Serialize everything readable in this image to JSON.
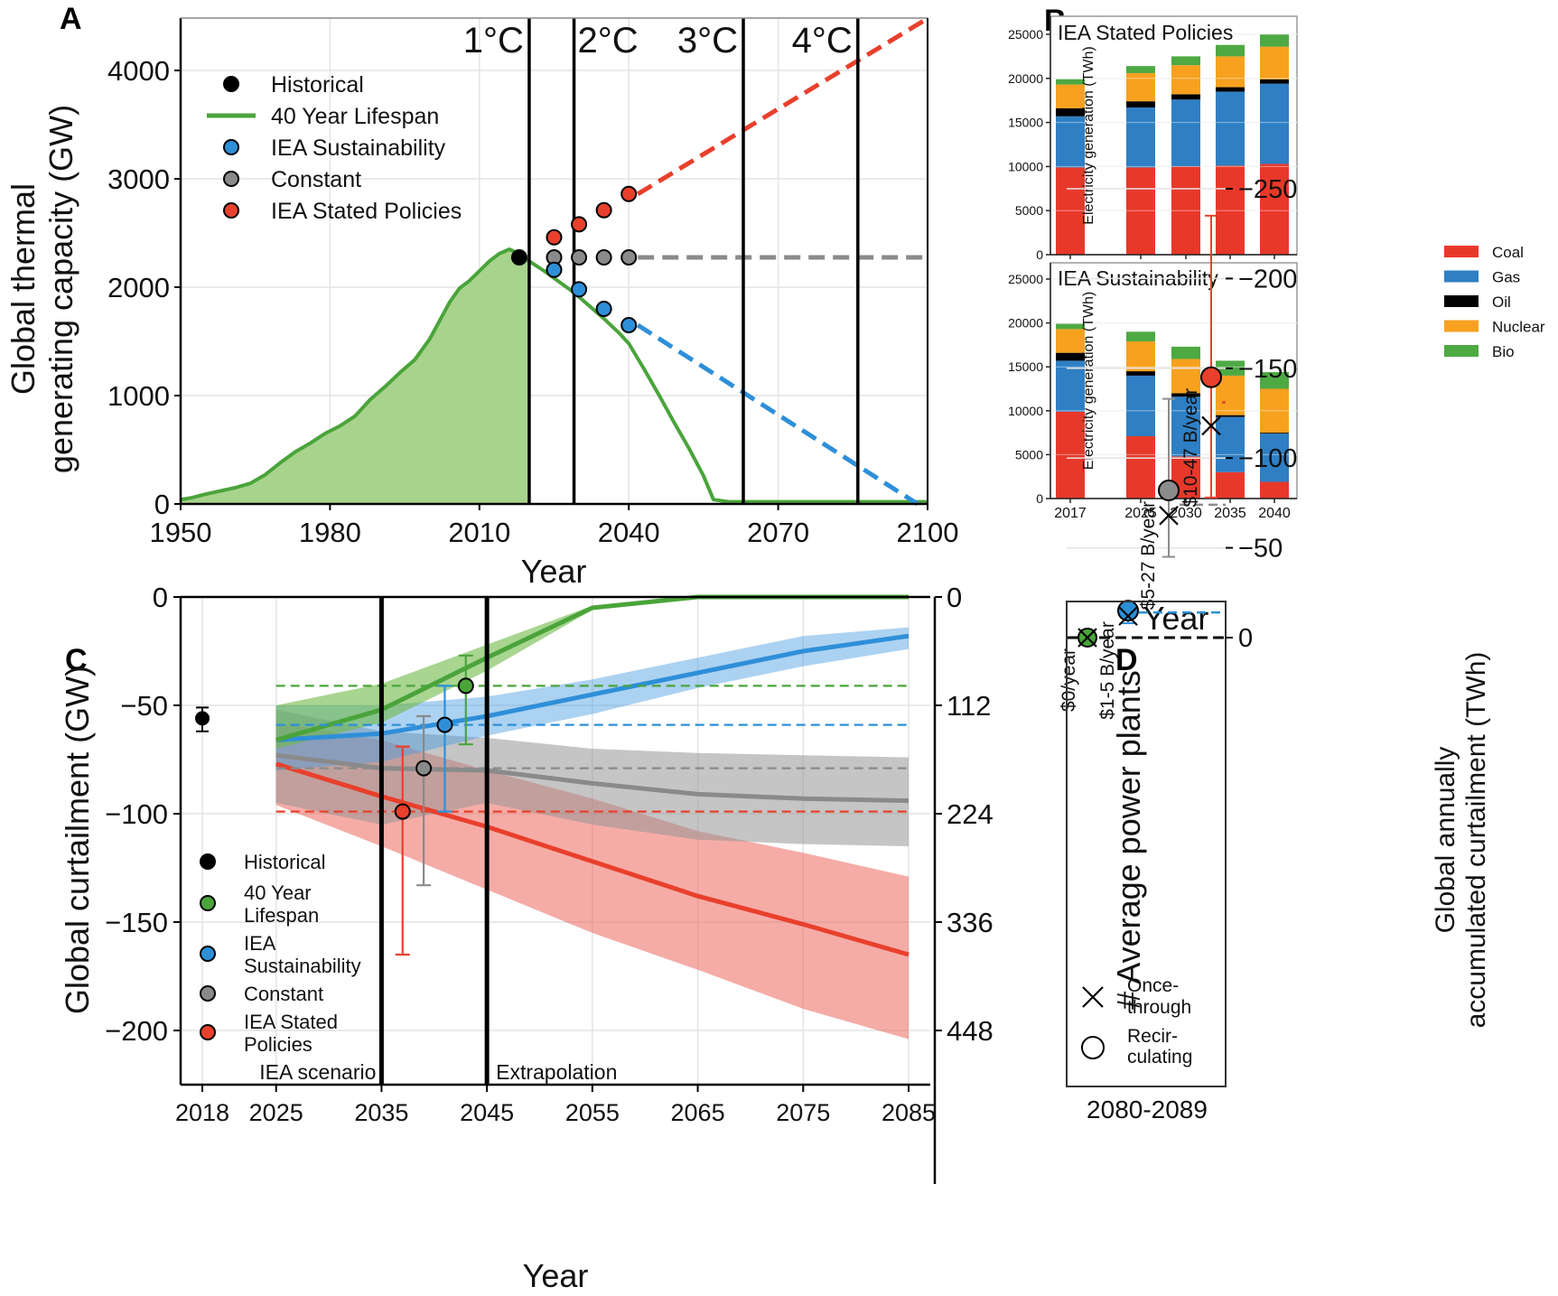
{
  "figure": {
    "panels": [
      "A",
      "B",
      "C",
      "D"
    ]
  },
  "chart_data": [
    {
      "panel": "A",
      "type": "line",
      "xlabel": "Year",
      "ylabel": "Global thermal generating capacity (GW)",
      "xlim": [
        1950,
        2100
      ],
      "ylim": [
        0,
        4400
      ],
      "xticks": [
        1950,
        1980,
        2010,
        2040,
        2070,
        2100
      ],
      "yticks": [
        0,
        1000,
        2000,
        3000,
        4000
      ],
      "grid": true,
      "legend_position": "top-left",
      "legend": [
        "Historical",
        "40 Year Lifespan",
        "IEA Sustainability",
        "Constant",
        "IEA Stated Policies"
      ],
      "warming_lines": [
        {
          "label": "1°C",
          "year": 2020
        },
        {
          "label": "2°C",
          "year": 2029
        },
        {
          "label": "3°C",
          "year": 2063
        },
        {
          "label": "4°C",
          "year": 2086
        }
      ],
      "lifespan_40yr": {
        "x": [
          1950,
          1952,
          1955,
          1958,
          1961,
          1964,
          1967,
          1970,
          1973,
          1976,
          1979,
          1982,
          1985,
          1988,
          1991,
          1994,
          1997,
          2000,
          2002,
          2004,
          2006,
          2008,
          2010,
          2012,
          2014,
          2016,
          2017,
          2018,
          2020,
          2023,
          2026,
          2029,
          2032,
          2035,
          2038,
          2040,
          2043,
          2046,
          2049,
          2052,
          2055,
          2057,
          2060,
          2070,
          2080,
          2090,
          2100
        ],
        "y": [
          40,
          55,
          90,
          120,
          150,
          190,
          270,
          380,
          480,
          560,
          650,
          720,
          810,
          960,
          1080,
          1210,
          1330,
          1520,
          1690,
          1860,
          1990,
          2060,
          2150,
          2240,
          2310,
          2350,
          2330,
          2290,
          2240,
          2150,
          2050,
          1950,
          1830,
          1710,
          1580,
          1480,
          1250,
          1010,
          760,
          520,
          260,
          40,
          20,
          20,
          20,
          20,
          20
        ]
      },
      "historical": {
        "x": [
          2018
        ],
        "y": [
          2275
        ]
      },
      "iea_sustainability": {
        "x": [
          2025,
          2030,
          2035,
          2040
        ],
        "y": [
          2160,
          1980,
          1800,
          1650
        ],
        "extrapolation": {
          "x": [
            2040,
            2098
          ],
          "y": [
            1650,
            0
          ]
        }
      },
      "constant": {
        "x": [
          2025,
          2030,
          2035,
          2040
        ],
        "y": [
          2275,
          2275,
          2275,
          2275
        ],
        "extrapolation": {
          "x": [
            2040,
            2100
          ],
          "y": [
            2275,
            2275
          ]
        }
      },
      "iea_stated_policies": {
        "x": [
          2025,
          2030,
          2035,
          2040
        ],
        "y": [
          2460,
          2580,
          2710,
          2860
        ],
        "extrapolation": {
          "x": [
            2040,
            2100
          ],
          "y": [
            2860,
            4480
          ]
        }
      }
    },
    {
      "panel": "B",
      "type": "bar",
      "stacked": true,
      "xlabel": "Year",
      "ylabel": "Electricity generation (TWh)",
      "ylim": [
        0,
        27000
      ],
      "yticks": [
        0,
        5000,
        10000,
        15000,
        20000,
        25000
      ],
      "categories": [
        "2017",
        "2025",
        "2030",
        "2035",
        "2040"
      ],
      "legend_position": "right",
      "legend": [
        "Coal",
        "Gas",
        "Oil",
        "Nuclear",
        "Bio"
      ],
      "subplots": [
        {
          "title": "IEA Stated Policies",
          "series": [
            {
              "name": "Coal",
              "values": [
                9900,
                9900,
                10000,
                10100,
                10300
              ]
            },
            {
              "name": "Gas",
              "values": [
                5800,
                6800,
                7600,
                8400,
                9100
              ]
            },
            {
              "name": "Oil",
              "values": [
                900,
                700,
                600,
                500,
                500
              ]
            },
            {
              "name": "Nuclear",
              "values": [
                2700,
                3200,
                3300,
                3500,
                3700
              ]
            },
            {
              "name": "Bio",
              "values": [
                600,
                800,
                1000,
                1300,
                1400
              ]
            }
          ]
        },
        {
          "title": "IEA Sustainability",
          "series": [
            {
              "name": "Coal",
              "values": [
                9900,
                7100,
                4800,
                3000,
                1900
              ]
            },
            {
              "name": "Gas",
              "values": [
                5800,
                6900,
                6800,
                6300,
                5500
              ]
            },
            {
              "name": "Oil",
              "values": [
                900,
                500,
                400,
                200,
                100
              ]
            },
            {
              "name": "Nuclear",
              "values": [
                2700,
                3400,
                3900,
                4500,
                5000
              ]
            },
            {
              "name": "Bio",
              "values": [
                600,
                1100,
                1400,
                1700,
                1900
              ]
            }
          ]
        }
      ]
    },
    {
      "panel": "C",
      "type": "line",
      "xlabel": "Year",
      "ylabel": "Global curtailment (GW)",
      "ylabel_right": "# Average power plants",
      "xlim": [
        2015,
        2088
      ],
      "ylim": [
        -225,
        0
      ],
      "xticks": [
        2018,
        2025,
        2035,
        2045,
        2055,
        2065,
        2075,
        2085
      ],
      "yticks": [
        0,
        -50,
        -100,
        -150,
        -200
      ],
      "yticks_right": [
        0,
        112,
        224,
        336,
        448
      ],
      "grid": true,
      "legend_position": "bottom-left",
      "legend": [
        "Historical",
        "40 Year Lifespan",
        "IEA Sustainability",
        "Constant",
        "IEA Stated Policies"
      ],
      "region_labels": [
        {
          "text": "IEA scenario",
          "span": [
            2025,
            2035
          ]
        },
        {
          "text": "Extrapolation",
          "span": [
            2045,
            2085
          ]
        }
      ],
      "region_lines": [
        2035,
        2045
      ],
      "historical": {
        "x": 2018,
        "y": -56,
        "err": [
          -62,
          -51
        ]
      },
      "series": [
        {
          "name": "40 Year Lifespan",
          "x": [
            2025,
            2035,
            2045,
            2055,
            2065,
            2075,
            2085
          ],
          "y": [
            -66,
            -52,
            -28,
            -5,
            0,
            0,
            0
          ],
          "upper": [
            -50,
            -40,
            -22,
            -4,
            0,
            0,
            0
          ],
          "lower": [
            -70,
            -58,
            -34,
            -6,
            0,
            0,
            0
          ],
          "mean_dashed": -41,
          "point": {
            "x": 2043,
            "y": -41,
            "err": [
              -68,
              -27
            ]
          }
        },
        {
          "name": "IEA Sustainability",
          "x": [
            2025,
            2035,
            2045,
            2055,
            2065,
            2075,
            2085
          ],
          "y": [
            -66,
            -63,
            -55,
            -45,
            -35,
            -25,
            -18
          ],
          "upper": [
            -50,
            -50,
            -46,
            -38,
            -28,
            -18,
            -14
          ],
          "lower": [
            -80,
            -76,
            -64,
            -54,
            -42,
            -32,
            -24
          ],
          "mean_dashed": -59,
          "point": {
            "x": 2041,
            "y": -59,
            "err": [
              -99,
              -41
            ]
          }
        },
        {
          "name": "Constant",
          "x": [
            2025,
            2035,
            2045,
            2055,
            2065,
            2075,
            2085
          ],
          "y": [
            -73,
            -79,
            -80,
            -86,
            -91,
            -93,
            -94
          ],
          "upper": [
            -52,
            -62,
            -65,
            -70,
            -72,
            -73,
            -74
          ],
          "lower": [
            -95,
            -105,
            -95,
            -105,
            -112,
            -114,
            -115
          ],
          "mean_dashed": -79,
          "point": {
            "x": 2039,
            "y": -79,
            "err": [
              -133,
              -55
            ]
          }
        },
        {
          "name": "IEA Stated Policies",
          "x": [
            2025,
            2035,
            2045,
            2055,
            2065,
            2075,
            2085
          ],
          "y": [
            -77,
            -92,
            -106,
            -122,
            -138,
            -151,
            -165
          ],
          "upper": [
            -58,
            -66,
            -80,
            -93,
            -108,
            -118,
            -129
          ],
          "lower": [
            -96,
            -115,
            -135,
            -155,
            -172,
            -190,
            -204
          ],
          "mean_dashed": -99,
          "point": {
            "x": 2037,
            "y": -99,
            "err": [
              -165,
              -69
            ]
          }
        }
      ]
    },
    {
      "panel": "D",
      "type": "scatter",
      "xlabel": "2080-2089",
      "ylabel": "Global annually accumulated curtailment (TWh)",
      "ylim": [
        -250,
        10
      ],
      "yticks": [
        0,
        -50,
        -100,
        -150,
        -200,
        -250
      ],
      "legend_position": "bottom-left",
      "legend": [
        "Once-through",
        "Recir-culating"
      ],
      "points": [
        {
          "scenario": "40 Year Lifespan",
          "cost_label": "$0/year",
          "color": "#4aa43a",
          "recirculating": 0,
          "once_through": 0,
          "err": [
            -1,
            1
          ],
          "dashed": 0
        },
        {
          "scenario": "IEA Sustainability",
          "cost_label": "$1-5 B/year",
          "color": "#2a8fd6",
          "recirculating": -15,
          "once_through": -12,
          "err": [
            -18,
            -8
          ],
          "dashed": -14
        },
        {
          "scenario": "Constant",
          "cost_label": "$5-27 B/year",
          "color": "#8c8c8c",
          "recirculating": -82,
          "once_through": -68,
          "err": [
            -133,
            -45
          ],
          "dashed": -74
        },
        {
          "scenario": "IEA Stated Policies",
          "cost_label": "$10-47 B/year",
          "color": "#e8402c",
          "recirculating": -145,
          "once_through": -118,
          "err": [
            -235,
            -78
          ],
          "dashed": -131
        }
      ]
    }
  ],
  "colors": {
    "green": "#4aa43a",
    "green_fill": "#a8d38c",
    "blue": "#2e8fd8",
    "gray": "#8a8a8a",
    "red": "#e8402c",
    "coal": "#e8382a",
    "gas": "#2f7fc4",
    "oil": "#000000",
    "nuclear": "#f7a11f",
    "bio": "#4ea943"
  }
}
